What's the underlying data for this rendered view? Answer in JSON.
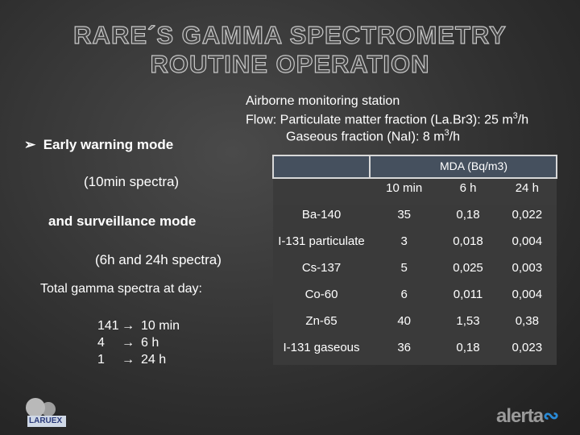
{
  "header": {
    "title": [
      "RARE´S GAMMA SPECTROMETRY",
      "ROUTINE OPERATION"
    ]
  },
  "left": {
    "bullet": "Early warning mode",
    "line1": "(10min spectra)",
    "line2": "and surveillance mode",
    "line3": "(6h and 24h  spectra)",
    "total_label": "Total gamma spectra at day:",
    "spectra": [
      [
        "141",
        "10 min"
      ],
      [
        "4",
        "6 h"
      ],
      [
        "1",
        "24 h"
      ]
    ]
  },
  "right": {
    "line1": "Airborne monitoring station",
    "line2": [
      "Flow: Particulate matter fraction (La.Br3): 25 m",
      "3",
      "/h"
    ],
    "line3": [
      "Gaseous fraction (NaI): 8 m",
      "3",
      "/h"
    ]
  },
  "table": {
    "header": "MDA (Bq/m3)",
    "columns": [
      "10 min",
      "6 h",
      "24 h"
    ],
    "rows": [
      [
        "Ba-140",
        "35",
        "0,18",
        "0,022"
      ],
      [
        "I-131 particulate",
        "3",
        "0,018",
        "0,004"
      ],
      [
        "Cs-137",
        "5",
        "0,025",
        "0,003"
      ],
      [
        "Co-60",
        "6",
        "0,011",
        "0,004"
      ],
      [
        "Zn-65",
        "40",
        "1,53",
        "0,38"
      ],
      [
        "I-131 gaseous",
        "36",
        "0,18",
        "0,023"
      ]
    ]
  },
  "logos": [
    "LARUEX",
    "alerta"
  ]
}
